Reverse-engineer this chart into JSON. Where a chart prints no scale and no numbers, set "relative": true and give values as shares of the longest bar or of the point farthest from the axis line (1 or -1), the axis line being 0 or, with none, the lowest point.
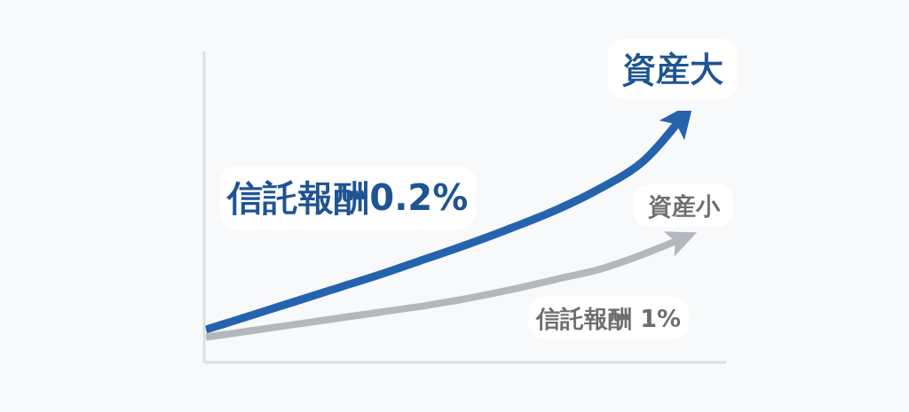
{
  "chart_data": {
    "type": "line",
    "relative": true,
    "categories": [
      null,
      null,
      null,
      null,
      null,
      null,
      null,
      null,
      null,
      null,
      null,
      null
    ],
    "series": [
      {
        "name": "信託報酬0.2%",
        "color": "#2563ad",
        "values": [
          0.13,
          0.185,
          0.24,
          0.295,
          0.35,
          0.41,
          0.47,
          0.535,
          0.605,
          0.69,
          0.8,
          1
        ]
      },
      {
        "name": "信託報酬 1%",
        "color": "#b4b7bb",
        "values": [
          0.1,
          0.125,
          0.15,
          0.175,
          0.2,
          0.225,
          0.255,
          0.29,
          0.33,
          0.37,
          0.43,
          0.5
        ]
      }
    ],
    "annotations": [
      "資産大",
      "資産小"
    ]
  }
}
